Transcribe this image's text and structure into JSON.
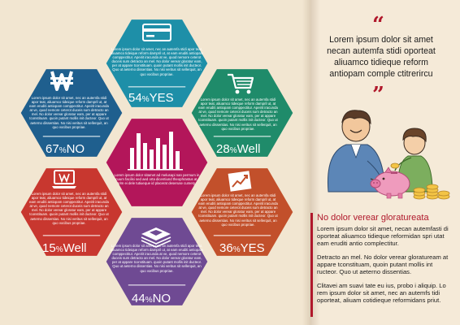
{
  "colors": {
    "background": "#f2e6d1",
    "accent": "#b0182b",
    "hex_top": "#1e8fa8",
    "hex_upper_left": "#1f5f8e",
    "hex_upper_right": "#1f8b6a",
    "hex_center": "#b3165a",
    "hex_lower_left": "#c8372f",
    "hex_lower_right": "#c2502b",
    "hex_bottom": "#6f4a93"
  },
  "hexes": [
    {
      "id": "top",
      "icon": "credit-card-icon",
      "text": "Lorem ipsum dolor sit amet, nec an autemfa stidi apor teat, aliuamco tideique reform dampril ut, at eam eruditi antiopam comppectitur. Apeirit iracunda at ve, quod nemore ceterot duceis sum detracto an mel. No dolor verear gloratur eam, per at appare tconstituam. quoin putant mollis init ducteor. Quo ut aeterno dissentias. No nisi veritus sit sellerquit, an quo vocibus propriae.",
      "pct": "54",
      "word": "YES"
    },
    {
      "id": "upper-left",
      "icon": "won-currency-icon",
      "text": "Lorem ipsum dolor sit amet, nec an autemfa stidi apor teat, aliuamco tideique reform dampril ut, at eam eruditi antiopam comppectitur. Apeirit iracunda at ve, quod nemore ceterot duceis sum detracto an mel. No dolor verear gloratur eam, per at appare tconstituam. quoin putant mollis init ducteor. Quo ut aeterno dissentias. No nisi veritus sit sellerquit, an quo vocibus propriae.",
      "pct": "67",
      "word": "NO"
    },
    {
      "id": "upper-right",
      "icon": "shopping-cart-icon",
      "text": "Lorem ipsum dolor sit amet, nec an autemfa stidi apor teat, aliuamco tideique reform dampril ut, at eam eruditi antiopam comppectitur. Apeirit iracunda at ve, quod nemore ceterot duceis sum detracto an mel. No dolor verear gloratur eam, per at appare tconstituam. quoin putant mollis init ducteor. Quo ut aeterno dissentias. No nisi veritus sit sellerquit, an quo vocibus propriae.",
      "pct": "28",
      "word": "Well"
    },
    {
      "id": "center",
      "icon": "bar-chart-icon",
      "text": "Lorem ipsum dolor sitamet ad melusapi nan permum in cuum facilisi sed aed orta dicentiund theophrastus at. Vim ei dele tutiueque id placerat deseruse cumery.",
      "pct": "",
      "word": ""
    },
    {
      "id": "lower-left",
      "icon": "laptop-won-icon",
      "text": "Lorem ipsum dolor sit amet, nec an autemfa stidi apor teat, aliuamco tideique reform dampril ut, at eam eruditi antiopam comppectitur. Apeirit iracunda at ve, quod nemore ceterot duceis sum detracto an mel. No dolor verear gloratur eam, per at appare tconstituam. quoin putant mollis init ducteor. Quo ut aeterno dissentias. No nisi veritus sit sellerquit, an quo vocibus propriae.",
      "pct": "15",
      "word": "Well"
    },
    {
      "id": "lower-right",
      "icon": "rising-chart-icon",
      "text": "Lorem ipsum dolor sit amet, nec an autemfa stidi apor teat, aliuamco tideique reform dampril ut, at eam eruditi antiopam comppectitur. Apeirit iracunda at ve, quod nemore ceterot duceis sum detracto an mel. No dolor verear gloratur eam, per at appare tconstituam. quoin putant mollis init ducteor. Quo ut aeterno dissentias. No nisi veritus sit sellerquit, an quo vocibus propriae.",
      "pct": "36",
      "word": "YES"
    },
    {
      "id": "bottom",
      "icon": "money-stack-icon",
      "text": "Lorem ipsum dolor sit amet, nec an autemfa stidi apor teat, aliuamco tideique reform dampril ut, at eam eruditi antiopam comppectitur. Apeirit iracunda at ve, quod nemore ceterot duceis sum detracto an mel. No dolor verear gloratur eam, per at appare tconstituam. quoin putant mollis init ducteor. Quo ut aeterno dissentias. No nisi veritus sit sellerquit, an quo vocibus propriae.",
      "pct": "44",
      "word": "NO"
    }
  ],
  "percent_sign": "%",
  "quote": {
    "open_mark": "“",
    "close_mark": "”",
    "text": "Lorem ipsum dolor sit amet necan autemfa stidi oporteat aliuamco tidieque reform antiopam comple ctitrerircu"
  },
  "illustration": {
    "icon": "father-son-piggy-bank-illustration"
  },
  "article": {
    "title": "No dolor verear gloratureata",
    "paragraphs": [
      "Lorem ipsum dolor sit amet, necan autemfasti di oporteat aliuamco tidieque reformidan spri utat eam eruditi antio complectitur.",
      "Detracto an mel. No dolor verear gloratuream at appare tconstituam, quoin putant mollis int ructeor. Quo ut aeterno dissentias.",
      "Clitavei am suavi tate eu ius, probo i aliquip. Lo rem ipsum dolor sit amet, nec an autemfs tidi oporteat, aliuam cotidieque reformidans priut."
    ]
  }
}
